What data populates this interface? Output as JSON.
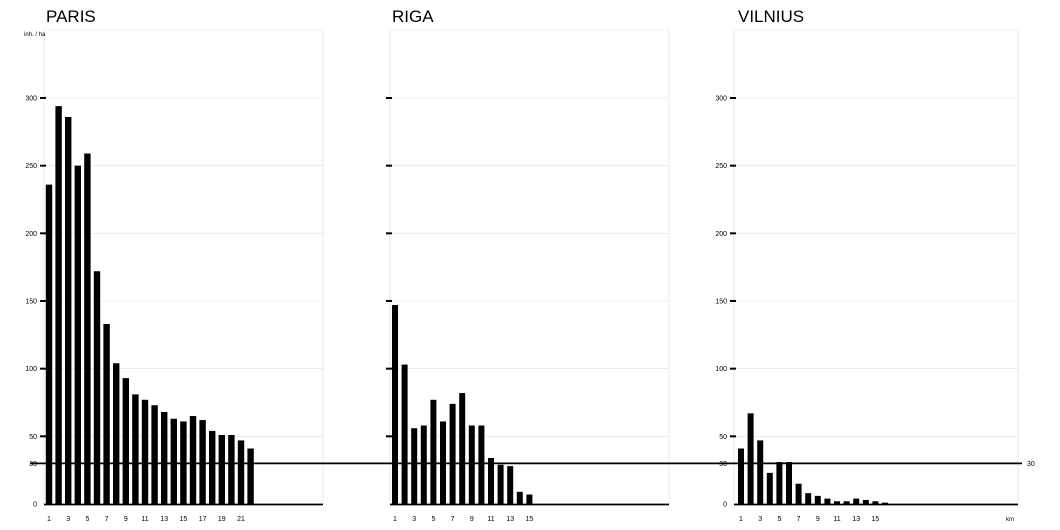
{
  "chart_data": {
    "type": "bar",
    "ylabel": "inh. / ha",
    "xlabel": "km",
    "ylim": [
      0,
      350
    ],
    "yticks": [
      0,
      50,
      100,
      150,
      200,
      250,
      300
    ],
    "extra_ytick": 30,
    "reference_line": {
      "value": 30,
      "label": "30"
    },
    "grid": true,
    "panels": [
      {
        "name": "PARIS",
        "x": [
          1,
          2,
          3,
          4,
          5,
          6,
          7,
          8,
          9,
          10,
          11,
          12,
          13,
          14,
          15,
          16,
          17,
          18,
          19,
          20,
          21,
          22
        ],
        "xtick_labels": [
          "1",
          "3",
          "5",
          "7",
          "9",
          "11",
          "13",
          "15",
          "17",
          "19",
          "21"
        ],
        "values": [
          236,
          294,
          286,
          250,
          259,
          172,
          133,
          104,
          93,
          81,
          77,
          73,
          68,
          63,
          61,
          65,
          62,
          54,
          51,
          51,
          47,
          41
        ],
        "show_ytick_labels": true,
        "show_ylabel": true
      },
      {
        "name": "RIGA",
        "x": [
          1,
          2,
          3,
          4,
          5,
          6,
          7,
          8,
          9,
          10,
          11,
          12,
          13,
          14,
          15
        ],
        "xtick_labels": [
          "1",
          "3",
          "5",
          "7",
          "9",
          "11",
          "13",
          "15"
        ],
        "values": [
          147,
          103,
          56,
          58,
          77,
          61,
          74,
          82,
          58,
          58,
          34,
          29,
          28,
          9,
          7
        ],
        "show_ytick_labels": false,
        "show_ylabel": false
      },
      {
        "name": "VILNIUS",
        "x": [
          1,
          2,
          3,
          4,
          5,
          6,
          7,
          8,
          9,
          10,
          11,
          12,
          13,
          14,
          15,
          16
        ],
        "xtick_labels": [
          "1",
          "3",
          "5",
          "7",
          "9",
          "11",
          "13",
          "15"
        ],
        "values": [
          41,
          67,
          47,
          23,
          31,
          31,
          15,
          8,
          6,
          4,
          2,
          2,
          4,
          3,
          2,
          1
        ],
        "show_ytick_labels": true,
        "show_ylabel": false
      }
    ]
  }
}
